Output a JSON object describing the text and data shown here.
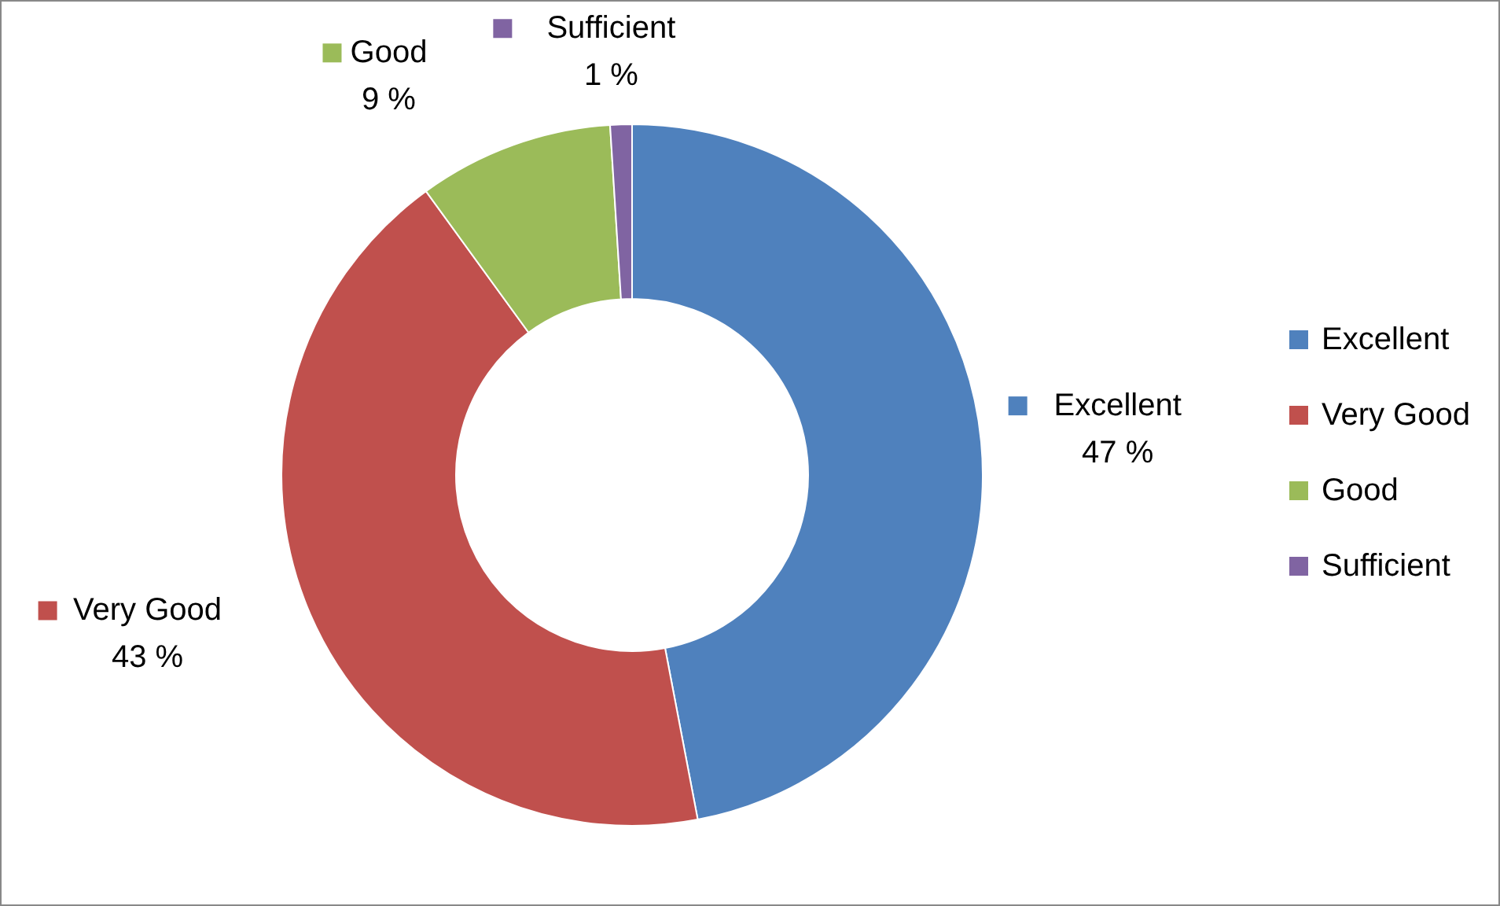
{
  "chart_data": {
    "type": "donut",
    "categories": [
      "Excellent",
      "Very Good",
      "Good",
      "Sufficient"
    ],
    "values": [
      47,
      43,
      9,
      1
    ],
    "colors": [
      "#4f81bd",
      "#c0504d",
      "#9bbb59",
      "#8064a2"
    ],
    "value_labels": [
      "47 %",
      "43 %",
      "9 %",
      "1 %"
    ],
    "legend": "right"
  }
}
